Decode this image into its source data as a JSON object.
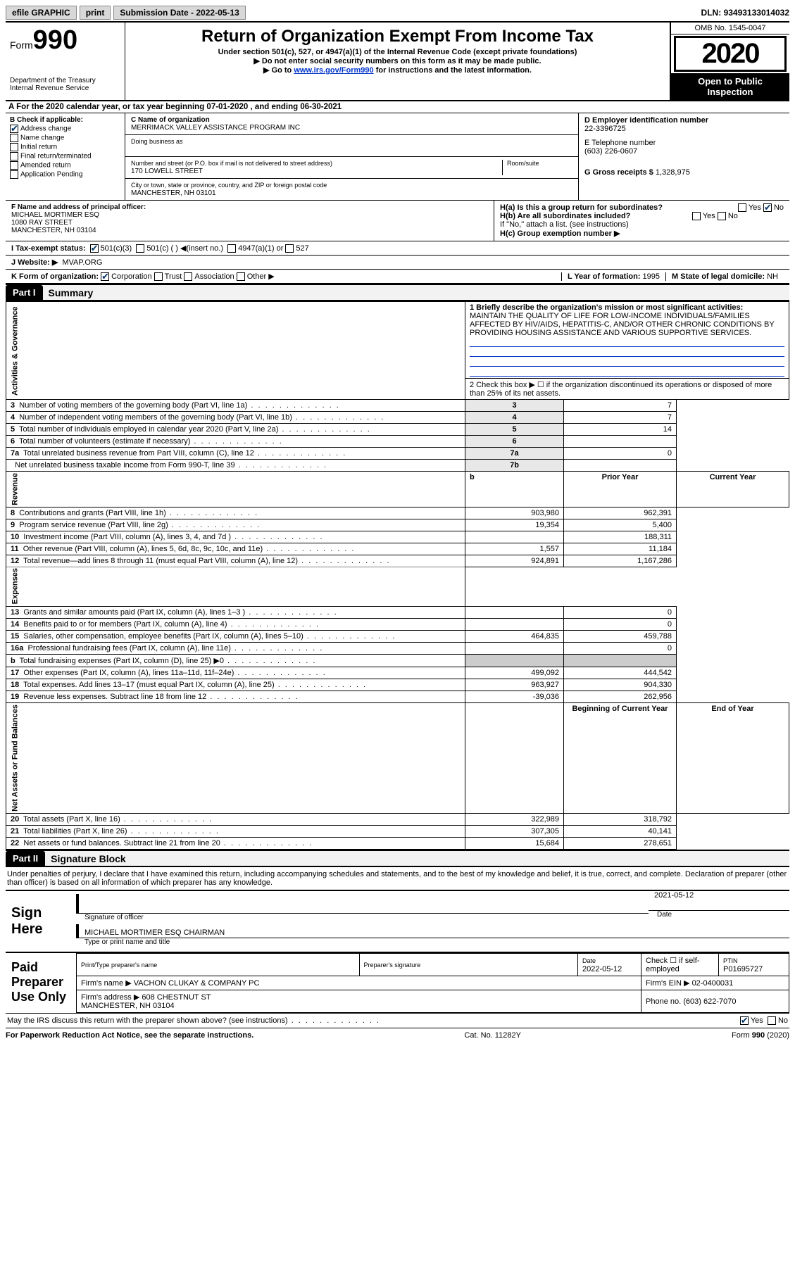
{
  "topbar": {
    "efile": "efile GRAPHIC",
    "print": "print",
    "sub_date_lbl": "Submission Date - 2022-05-13",
    "dln_lbl": "DLN:",
    "dln": "93493133014032"
  },
  "header": {
    "form_word": "Form",
    "form_num": "990",
    "dept": "Department of the Treasury\nInternal Revenue Service",
    "title": "Return of Organization Exempt From Income Tax",
    "sub1": "Under section 501(c), 527, or 4947(a)(1) of the Internal Revenue Code (except private foundations)",
    "sub2": "▶ Do not enter social security numbers on this form as it may be made public.",
    "sub3_pre": "▶ Go to ",
    "sub3_link": "www.irs.gov/Form990",
    "sub3_post": " for instructions and the latest information.",
    "omb": "OMB No. 1545-0047",
    "year": "2020",
    "open": "Open to Public Inspection"
  },
  "period": {
    "text": "A   For the 2020 calendar year, or tax year beginning 07-01-2020    , and ending 06-30-2021"
  },
  "b": {
    "title": "B Check if applicable:",
    "addr_change": "Address change",
    "name_change": "Name change",
    "initial": "Initial return",
    "final": "Final return/terminated",
    "amended": "Amended return",
    "pending": "Application Pending"
  },
  "c": {
    "name_lbl": "C Name of organization",
    "name": "MERRIMACK VALLEY ASSISTANCE PROGRAM INC",
    "dba_lbl": "Doing business as",
    "dba": "",
    "addr_lbl": "Number and street (or P.O. box if mail is not delivered to street address)",
    "room_lbl": "Room/suite",
    "addr": "170 LOWELL STREET",
    "city_lbl": "City or town, state or province, country, and ZIP or foreign postal code",
    "city": "MANCHESTER, NH  03101"
  },
  "d": {
    "lbl": "D Employer identification number",
    "val": "22-3396725"
  },
  "e": {
    "lbl": "E Telephone number",
    "val": "(603) 226-0607"
  },
  "g": {
    "lbl": "G Gross receipts $",
    "val": "1,328,975"
  },
  "f": {
    "lbl": "F Name and address of principal officer:",
    "name": "MICHAEL MORTIMER ESQ",
    "addr1": "1080 RAY STREET",
    "addr2": "MANCHESTER, NH  03104"
  },
  "h": {
    "a_lbl": "H(a)  Is this a group return for subordinates?",
    "yes": "Yes",
    "no": "No",
    "b_lbl": "H(b)  Are all subordinates included?",
    "b_note": "If \"No,\" attach a list. (see instructions)",
    "c_lbl": "H(c)  Group exemption number ▶"
  },
  "i": {
    "lbl": "I   Tax-exempt status:",
    "o1": "501(c)(3)",
    "o2": "501(c) (  ) ◀(insert no.)",
    "o3": "4947(a)(1) or",
    "o4": "527"
  },
  "j": {
    "lbl": "J   Website: ▶",
    "val": "MVAP.ORG"
  },
  "k": {
    "lbl": "K Form of organization:",
    "o1": "Corporation",
    "o2": "Trust",
    "o3": "Association",
    "o4": "Other ▶"
  },
  "l": {
    "lbl": "L Year of formation:",
    "val": "1995"
  },
  "m": {
    "lbl": "M State of legal domicile:",
    "val": "NH"
  },
  "part1": {
    "hdr": "Part I",
    "title": "Summary",
    "sidelabels": {
      "gov": "Activities & Governance",
      "rev": "Revenue",
      "exp": "Expenses",
      "net": "Net Assets or Fund Balances"
    },
    "l1_lbl": "1   Briefly describe the organization's mission or most significant activities:",
    "l1_text": "MAINTAIN THE QUALITY OF LIFE FOR LOW-INCOME INDIVIDUALS/FAMILIES AFFECTED BY HIV/AIDS, HEPATITIS-C, AND/OR OTHER CHRONIC CONDITIONS BY PROVIDING HOUSING ASSISTANCE AND VARIOUS SUPPORTIVE SERVICES.",
    "l2": "2   Check this box ▶ ☐  if the organization discontinued its operations or disposed of more than 25% of its net assets.",
    "rows_gov": [
      {
        "n": "3",
        "t": "Number of voting members of the governing body (Part VI, line 1a)",
        "bn": "3",
        "v": "7"
      },
      {
        "n": "4",
        "t": "Number of independent voting members of the governing body (Part VI, line 1b)",
        "bn": "4",
        "v": "7"
      },
      {
        "n": "5",
        "t": "Total number of individuals employed in calendar year 2020 (Part V, line 2a)",
        "bn": "5",
        "v": "14"
      },
      {
        "n": "6",
        "t": "Total number of volunteers (estimate if necessary)",
        "bn": "6",
        "v": ""
      },
      {
        "n": "7a",
        "t": "Total unrelated business revenue from Part VIII, column (C), line 12",
        "bn": "7a",
        "v": "0"
      },
      {
        "n": "",
        "t": "Net unrelated business taxable income from Form 990-T, line 39",
        "bn": "7b",
        "v": ""
      }
    ],
    "col_hdr_b": "b",
    "col_hdr_prior": "Prior Year",
    "col_hdr_curr": "Current Year",
    "rows_rev": [
      {
        "n": "8",
        "t": "Contributions and grants (Part VIII, line 1h)",
        "p": "903,980",
        "c": "962,391"
      },
      {
        "n": "9",
        "t": "Program service revenue (Part VIII, line 2g)",
        "p": "19,354",
        "c": "5,400"
      },
      {
        "n": "10",
        "t": "Investment income (Part VIII, column (A), lines 3, 4, and 7d )",
        "p": "",
        "c": "188,311"
      },
      {
        "n": "11",
        "t": "Other revenue (Part VIII, column (A), lines 5, 6d, 8c, 9c, 10c, and 11e)",
        "p": "1,557",
        "c": "11,184"
      },
      {
        "n": "12",
        "t": "Total revenue—add lines 8 through 11 (must equal Part VIII, column (A), line 12)",
        "p": "924,891",
        "c": "1,167,286"
      }
    ],
    "rows_exp": [
      {
        "n": "13",
        "t": "Grants and similar amounts paid (Part IX, column (A), lines 1–3 )",
        "p": "",
        "c": "0"
      },
      {
        "n": "14",
        "t": "Benefits paid to or for members (Part IX, column (A), line 4)",
        "p": "",
        "c": "0"
      },
      {
        "n": "15",
        "t": "Salaries, other compensation, employee benefits (Part IX, column (A), lines 5–10)",
        "p": "464,835",
        "c": "459,788"
      },
      {
        "n": "16a",
        "t": "Professional fundraising fees (Part IX, column (A), line 11e)",
        "p": "",
        "c": "0"
      },
      {
        "n": "b",
        "t": "Total fundraising expenses (Part IX, column (D), line 25) ▶0",
        "p": "__shade__",
        "c": "__shade__"
      },
      {
        "n": "17",
        "t": "Other expenses (Part IX, column (A), lines 11a–11d, 11f–24e)",
        "p": "499,092",
        "c": "444,542"
      },
      {
        "n": "18",
        "t": "Total expenses. Add lines 13–17 (must equal Part IX, column (A), line 25)",
        "p": "963,927",
        "c": "904,330"
      },
      {
        "n": "19",
        "t": "Revenue less expenses. Subtract line 18 from line 12",
        "p": "-39,036",
        "c": "262,956"
      }
    ],
    "net_hdr_b": "Beginning of Current Year",
    "net_hdr_e": "End of Year",
    "rows_net": [
      {
        "n": "20",
        "t": "Total assets (Part X, line 16)",
        "p": "322,989",
        "c": "318,792"
      },
      {
        "n": "21",
        "t": "Total liabilities (Part X, line 26)",
        "p": "307,305",
        "c": "40,141"
      },
      {
        "n": "22",
        "t": "Net assets or fund balances. Subtract line 21 from line 20",
        "p": "15,684",
        "c": "278,651"
      }
    ]
  },
  "part2": {
    "hdr": "Part II",
    "title": "Signature Block",
    "decl": "Under penalties of perjury, I declare that I have examined this return, including accompanying schedules and statements, and to the best of my knowledge and belief, it is true, correct, and complete. Declaration of preparer (other than officer) is based on all information of which preparer has any knowledge.",
    "sign_here": "Sign Here",
    "sig_of": "Signature of officer",
    "date_lbl": "Date",
    "sig_date": "2021-05-12",
    "name": "MICHAEL MORTIMER ESQ CHAIRMAN",
    "name_lbl": "Type or print name and title",
    "paid_lbl": "Paid Preparer Use Only",
    "prep_name_lbl": "Print/Type preparer's name",
    "prep_sig_lbl": "Preparer's signature",
    "prep_date_lbl": "Date",
    "prep_date": "2022-05-12",
    "check_lbl": "Check ☐ if self-employed",
    "ptin_lbl": "PTIN",
    "ptin": "P01695727",
    "firm_name_lbl": "Firm's name    ▶",
    "firm_name": "VACHON CLUKAY & COMPANY PC",
    "firm_ein_lbl": "Firm's EIN ▶",
    "firm_ein": "02-0400031",
    "firm_addr_lbl": "Firm's address ▶",
    "firm_addr": "608 CHESTNUT ST\nMANCHESTER, NH  03104",
    "phone_lbl": "Phone no.",
    "phone": "(603) 622-7070",
    "discuss": "May the IRS discuss this return with the preparer shown above? (see instructions)",
    "yes": "Yes",
    "no": "No"
  },
  "footer": {
    "pra": "For Paperwork Reduction Act Notice, see the separate instructions.",
    "cat": "Cat. No. 11282Y",
    "form": "Form 990 (2020)"
  },
  "colors": {
    "link": "#0033cc",
    "shade": "#cccccc",
    "topbtn": "#d8d8d8"
  }
}
